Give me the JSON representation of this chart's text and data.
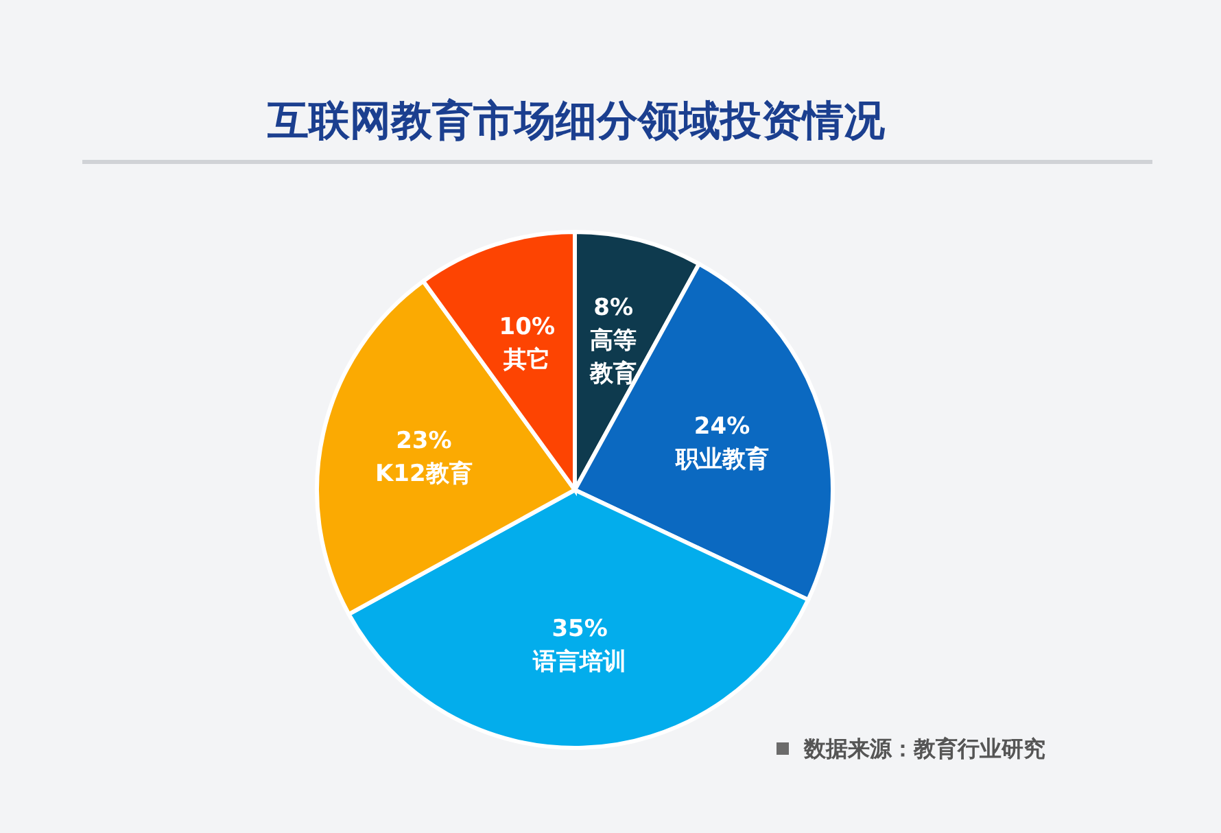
{
  "chart_data": {
    "type": "pie",
    "title": "互联网教育市场细分领域投资情况",
    "categories": [
      "高等教育",
      "职业教育",
      "语言培训",
      "K12教育",
      "其它"
    ],
    "values": [
      8,
      24,
      35,
      23,
      10
    ],
    "colors": [
      "#0e3a4e",
      "#0b69c1",
      "#03adec",
      "#fbaa02",
      "#fd4402"
    ],
    "value_labels": [
      "8%",
      "24%",
      "35%",
      "23%",
      "10%"
    ],
    "annotations": [
      "数据来源：教育行业研究"
    ]
  }
}
